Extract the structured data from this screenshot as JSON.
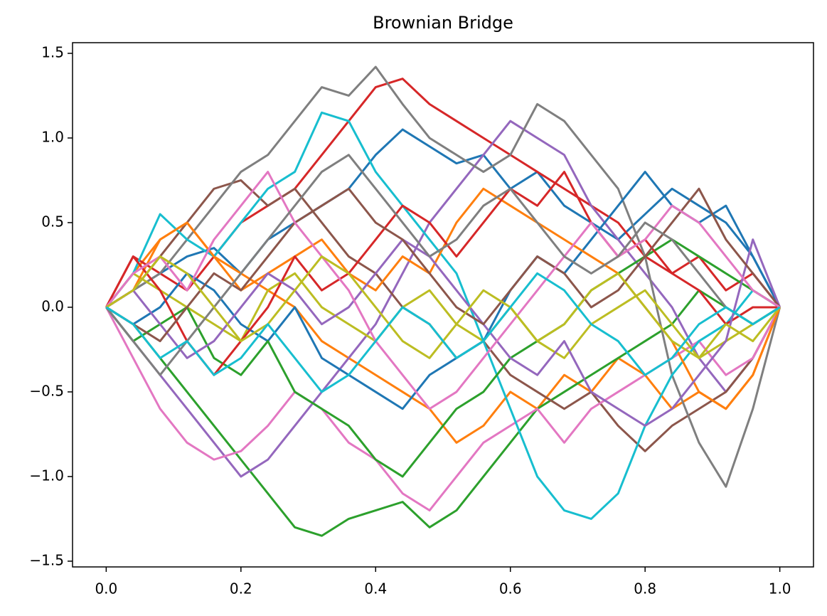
{
  "chart_data": {
    "type": "line",
    "title": "Brownian Bridge",
    "x": [
      0,
      0.04,
      0.08,
      0.12,
      0.16,
      0.2,
      0.24,
      0.28,
      0.32,
      0.36,
      0.4,
      0.44,
      0.48,
      0.52,
      0.56,
      0.6,
      0.64,
      0.68,
      0.72,
      0.76,
      0.8,
      0.84,
      0.88,
      0.92,
      0.96,
      1
    ],
    "series": [
      {
        "color": "#1f77b4",
        "values": [
          0,
          0.1,
          0.2,
          0.3,
          0.35,
          0.2,
          0.4,
          0.5,
          0.6,
          0.7,
          0.9,
          1.05,
          0.95,
          0.85,
          0.9,
          0.7,
          0.8,
          0.6,
          0.5,
          0.4,
          0.55,
          0.7,
          0.6,
          0.5,
          0.3,
          0
        ]
      },
      {
        "color": "#ff7f0e",
        "values": [
          0,
          0.2,
          0.4,
          0.5,
          0.3,
          0.2,
          0.1,
          0,
          -0.2,
          -0.3,
          -0.4,
          -0.5,
          -0.6,
          -0.8,
          -0.7,
          -0.5,
          -0.6,
          -0.4,
          -0.5,
          -0.3,
          -0.4,
          -0.6,
          -0.5,
          -0.6,
          -0.4,
          0
        ]
      },
      {
        "color": "#2ca02c",
        "values": [
          0,
          -0.1,
          -0.3,
          -0.5,
          -0.7,
          -0.9,
          -1.1,
          -1.3,
          -1.35,
          -1.25,
          -1.2,
          -1.15,
          -1.3,
          -1.2,
          -1,
          -0.8,
          -0.6,
          -0.5,
          -0.4,
          -0.3,
          -0.2,
          -0.1,
          0.1,
          0,
          -0.1,
          0
        ]
      },
      {
        "color": "#d62728",
        "values": [
          0,
          0.3,
          0.2,
          0.1,
          0.3,
          0.5,
          0.6,
          0.7,
          0.9,
          1.1,
          1.3,
          1.35,
          1.2,
          1.1,
          1,
          0.9,
          0.8,
          0.7,
          0.6,
          0.5,
          0.3,
          0.2,
          0.3,
          0.1,
          0.2,
          0
        ]
      },
      {
        "color": "#9467bd",
        "values": [
          0,
          -0.2,
          -0.4,
          -0.6,
          -0.8,
          -1,
          -0.9,
          -0.7,
          -0.5,
          -0.3,
          -0.1,
          0.2,
          0.5,
          0.7,
          0.9,
          1.1,
          1,
          0.9,
          0.6,
          0.4,
          0.2,
          0,
          -0.3,
          -0.5,
          -0.3,
          0
        ]
      },
      {
        "color": "#8c564b",
        "values": [
          0,
          0.1,
          0.3,
          0.5,
          0.7,
          0.75,
          0.6,
          0.7,
          0.5,
          0.3,
          0.2,
          0,
          -0.1,
          -0.3,
          -0.2,
          -0.4,
          -0.5,
          -0.6,
          -0.5,
          -0.7,
          -0.85,
          -0.7,
          -0.6,
          -0.5,
          -0.3,
          0
        ]
      },
      {
        "color": "#e377c2",
        "values": [
          0,
          -0.3,
          -0.6,
          -0.8,
          -0.9,
          -0.85,
          -0.7,
          -0.5,
          -0.6,
          -0.8,
          -0.9,
          -1.1,
          -1.2,
          -1,
          -0.8,
          -0.7,
          -0.6,
          -0.8,
          -0.6,
          -0.5,
          -0.4,
          -0.3,
          -0.2,
          -0.4,
          -0.3,
          0
        ]
      },
      {
        "color": "#7f7f7f",
        "values": [
          0,
          0.1,
          0.2,
          0.4,
          0.6,
          0.8,
          0.9,
          1.1,
          1.3,
          1.25,
          1.42,
          1.2,
          1,
          0.9,
          0.8,
          0.9,
          1.2,
          1.1,
          0.9,
          0.7,
          0.3,
          -0.4,
          -0.8,
          -1.06,
          -0.6,
          0
        ]
      },
      {
        "color": "#bcbd22",
        "values": [
          0,
          0.2,
          0.1,
          0,
          -0.1,
          -0.2,
          0.1,
          0.2,
          0,
          -0.1,
          -0.2,
          0,
          0.1,
          -0.1,
          -0.2,
          0,
          -0.2,
          -0.3,
          -0.1,
          0,
          0.1,
          -0.1,
          -0.3,
          -0.2,
          -0.1,
          0
        ]
      },
      {
        "color": "#17becf",
        "values": [
          0,
          0.2,
          0.55,
          0.4,
          0.3,
          0.5,
          0.7,
          0.8,
          1.15,
          1.1,
          0.8,
          0.6,
          0.4,
          0.2,
          -0.2,
          -0.6,
          -1,
          -1.2,
          -1.25,
          -1.1,
          -0.7,
          -0.4,
          -0.2,
          -0.1,
          0.1,
          0
        ]
      },
      {
        "color": "#1f77b4",
        "values": [
          0,
          -0.1,
          0,
          0.2,
          0.1,
          -0.1,
          -0.2,
          0,
          -0.3,
          -0.4,
          -0.5,
          -0.6,
          -0.4,
          -0.3,
          -0.2,
          0.1,
          0.3,
          0.2,
          0.4,
          0.6,
          0.8,
          0.6,
          0.5,
          0.6,
          0.3,
          0
        ]
      },
      {
        "color": "#ff7f0e",
        "values": [
          0,
          0.1,
          0.4,
          0.5,
          0.3,
          0.1,
          0.2,
          0.3,
          0.4,
          0.2,
          0.1,
          0.3,
          0.2,
          0.5,
          0.7,
          0.6,
          0.5,
          0.4,
          0.3,
          0.2,
          0,
          -0.2,
          -0.5,
          -0.6,
          -0.4,
          0
        ]
      },
      {
        "color": "#2ca02c",
        "values": [
          0,
          -0.2,
          -0.1,
          0,
          -0.3,
          -0.4,
          -0.2,
          -0.5,
          -0.6,
          -0.7,
          -0.9,
          -1,
          -0.8,
          -0.6,
          -0.5,
          -0.3,
          -0.2,
          -0.1,
          0.1,
          0.2,
          0.3,
          0.4,
          0.3,
          0.2,
          0.1,
          0
        ]
      },
      {
        "color": "#d62728",
        "values": [
          0,
          0.3,
          0.1,
          -0.2,
          -0.4,
          -0.2,
          0,
          0.3,
          0.1,
          0.2,
          0.4,
          0.6,
          0.5,
          0.3,
          0.5,
          0.7,
          0.6,
          0.8,
          0.5,
          0.3,
          0.4,
          0.2,
          0.1,
          -0.1,
          0,
          0
        ]
      },
      {
        "color": "#9467bd",
        "values": [
          0,
          0.1,
          -0.1,
          -0.3,
          -0.2,
          0,
          0.2,
          0.1,
          -0.1,
          0,
          0.2,
          0.4,
          0.3,
          0.1,
          -0.1,
          -0.3,
          -0.4,
          -0.2,
          -0.5,
          -0.6,
          -0.7,
          -0.6,
          -0.4,
          -0.2,
          0.4,
          0
        ]
      },
      {
        "color": "#8c564b",
        "values": [
          0,
          -0.1,
          -0.2,
          0,
          0.2,
          0.1,
          0.3,
          0.5,
          0.6,
          0.7,
          0.5,
          0.4,
          0.2,
          0,
          -0.1,
          0.1,
          0.3,
          0.2,
          0,
          0.1,
          0.3,
          0.5,
          0.7,
          0.4,
          0.2,
          0
        ]
      },
      {
        "color": "#e377c2",
        "values": [
          0,
          0.2,
          0.3,
          0.1,
          0.4,
          0.6,
          0.8,
          0.5,
          0.3,
          0.1,
          -0.2,
          -0.4,
          -0.6,
          -0.5,
          -0.3,
          -0.1,
          0.1,
          0.3,
          0.5,
          0.3,
          0.4,
          0.6,
          0.5,
          0.3,
          0.1,
          0
        ]
      },
      {
        "color": "#7f7f7f",
        "values": [
          0,
          -0.2,
          -0.4,
          -0.2,
          0,
          0.2,
          0.4,
          0.6,
          0.8,
          0.9,
          0.7,
          0.5,
          0.3,
          0.4,
          0.6,
          0.7,
          0.5,
          0.3,
          0.2,
          0.3,
          0.5,
          0.4,
          0.2,
          0,
          -0.1,
          0
        ]
      },
      {
        "color": "#bcbd22",
        "values": [
          0,
          0.1,
          0.3,
          0.2,
          0,
          -0.2,
          -0.1,
          0.1,
          0.3,
          0.2,
          0,
          -0.2,
          -0.3,
          -0.1,
          0.1,
          0,
          -0.2,
          -0.1,
          0.1,
          0.2,
          0,
          -0.2,
          -0.3,
          -0.1,
          -0.2,
          0
        ]
      },
      {
        "color": "#17becf",
        "values": [
          0,
          -0.1,
          -0.3,
          -0.2,
          -0.4,
          -0.3,
          -0.1,
          -0.3,
          -0.5,
          -0.4,
          -0.2,
          0,
          -0.1,
          -0.3,
          -0.2,
          0,
          0.2,
          0.1,
          -0.1,
          -0.2,
          -0.4,
          -0.3,
          -0.1,
          0,
          -0.1,
          0
        ]
      }
    ],
    "xlim": [
      -0.05,
      1.05
    ],
    "xticks": [
      {
        "value": 0,
        "label": "0.0"
      },
      {
        "value": 0.2,
        "label": "0.2"
      },
      {
        "value": 0.4,
        "label": "0.4"
      },
      {
        "value": 0.6,
        "label": "0.6"
      },
      {
        "value": 0.8,
        "label": "0.8"
      },
      {
        "value": 1,
        "label": "1.0"
      }
    ],
    "ylim": [
      -1.534,
      1.563
    ],
    "yticks": [
      {
        "value": -1.5,
        "label": "−1.5"
      },
      {
        "value": -1,
        "label": "−1.0"
      },
      {
        "value": -0.5,
        "label": "−0.5"
      },
      {
        "value": 0,
        "label": "0.0"
      },
      {
        "value": 0.5,
        "label": "0.5"
      },
      {
        "value": 1,
        "label": "1.0"
      },
      {
        "value": 1.5,
        "label": "1.5"
      }
    ]
  }
}
